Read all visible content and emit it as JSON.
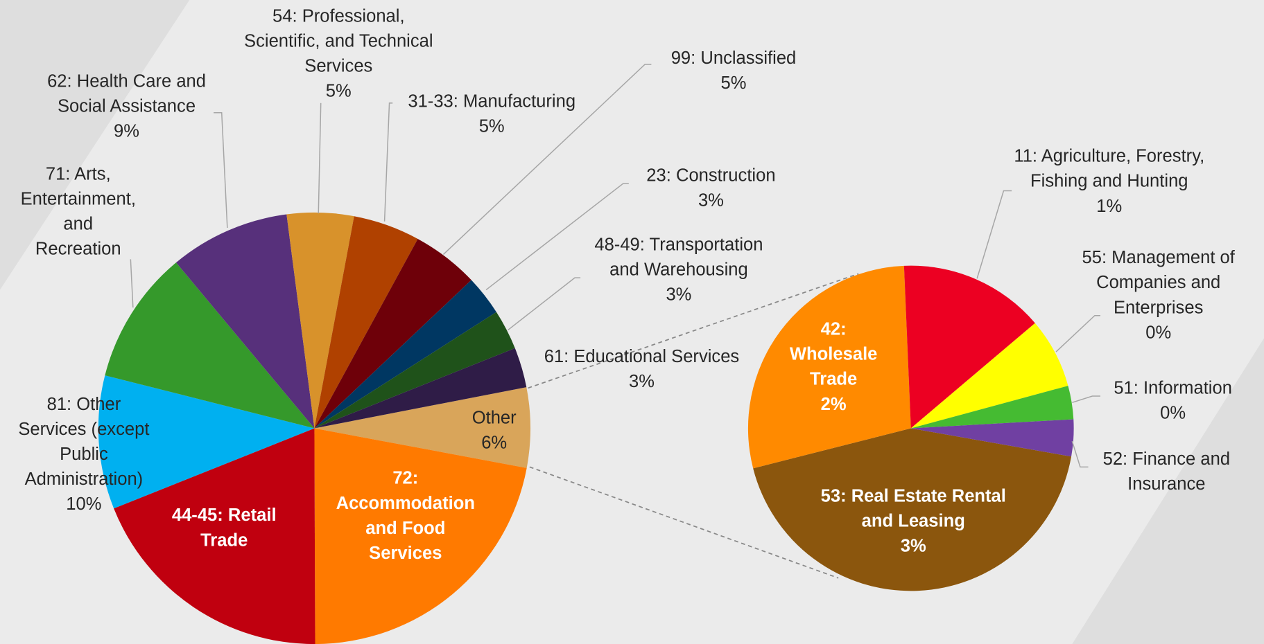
{
  "chart_data": [
    {
      "type": "pie",
      "start_angle": -11,
      "categories": [
        "Other",
        "72:\nAccommodation\nand Food\nServices",
        "44-45: Retail\nTrade",
        "81: Other\nServices (except\nPublic\nAdministration)",
        "71: Arts,\nEntertainment,\nand\nRecreation",
        "62: Health Care and\nSocial Assistance",
        "54: Professional,\nScientific, and Technical\nServices",
        "31-33: Manufacturing",
        "99: Unclassified",
        "23: Construction",
        "48-49: Transportation\nand Warehousing",
        "61: Educational Services"
      ],
      "values": [
        6,
        22,
        19,
        10,
        10,
        9,
        5,
        5,
        5,
        3,
        3,
        3
      ],
      "value_labels": [
        "6%",
        null,
        null,
        "10%",
        null,
        "9%",
        "5%",
        "5%",
        "5%",
        "3%",
        "3%",
        "3%"
      ],
      "colors": [
        "#d9a55a",
        "#ff7a00",
        "#c0000f",
        "#00b0f0",
        "#35992b",
        "#57307b",
        "#d8922b",
        "#b04100",
        "#6e0009",
        "#003762",
        "#1f521a",
        "#2f1c47"
      ]
    },
    {
      "type": "pie",
      "start_angle": 10,
      "categories": [
        "53: Real Estate Rental\nand Leasing",
        "42:\nWholesale\nTrade",
        "11: Agriculture, Forestry,\nFishing and Hunting",
        "55: Management of\nCompanies and\nEnterprises",
        "51: Information",
        "52: Finance and\nInsurance"
      ],
      "values": [
        2.6,
        1.7,
        0.87,
        0.42,
        0.2,
        0.22
      ],
      "value_labels": [
        "3%",
        "2%",
        "1%",
        "0%",
        "0%",
        null
      ],
      "colors": [
        "#8b560d",
        "#ff8a00",
        "#ec0022",
        "#ffff00",
        "#45bb32",
        "#7040a2"
      ]
    }
  ]
}
